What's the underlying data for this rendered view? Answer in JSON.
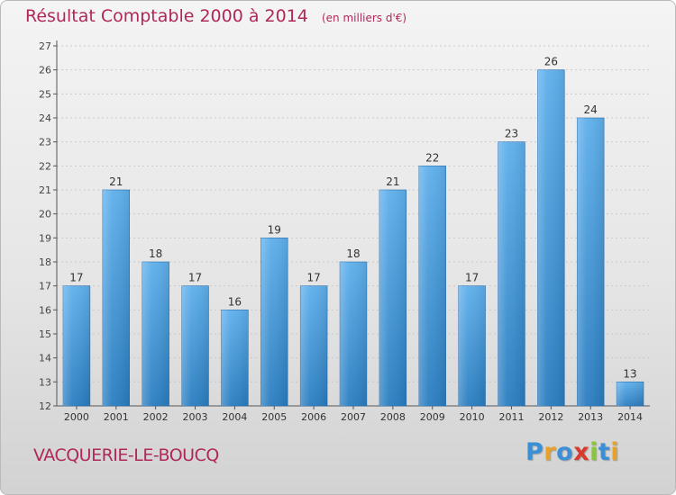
{
  "chart_data": {
    "type": "bar",
    "title": "Résultat Comptable 2000 à 2014",
    "subtitle": "(en milliers d'€)",
    "categories": [
      "2000",
      "2001",
      "2002",
      "2003",
      "2004",
      "2005",
      "2006",
      "2007",
      "2008",
      "2009",
      "2010",
      "2011",
      "2012",
      "2013",
      "2014"
    ],
    "values": [
      17,
      21,
      18,
      17,
      16,
      19,
      17,
      18,
      21,
      22,
      17,
      23,
      26,
      24,
      13
    ],
    "ylim": [
      12,
      27
    ],
    "yticks": [
      12,
      13,
      14,
      15,
      16,
      17,
      18,
      19,
      20,
      21,
      22,
      23,
      24,
      25,
      26,
      27
    ],
    "xlabel": "",
    "ylabel": "",
    "grid": true,
    "bar_color_top": "#5fb0ec",
    "bar_color_bottom": "#2a7dc0"
  },
  "location": "VACQUERIE-LE-BOUCQ",
  "brand": {
    "name": "Proxiti",
    "letters": [
      "P",
      "r",
      "o",
      "x",
      "i",
      "t",
      "i"
    ],
    "colors": [
      "#3a8fd6",
      "#e8a12b",
      "#3a8fd6",
      "#d83a2e",
      "#8cc43f",
      "#3a8fd6",
      "#e8a12b"
    ]
  }
}
